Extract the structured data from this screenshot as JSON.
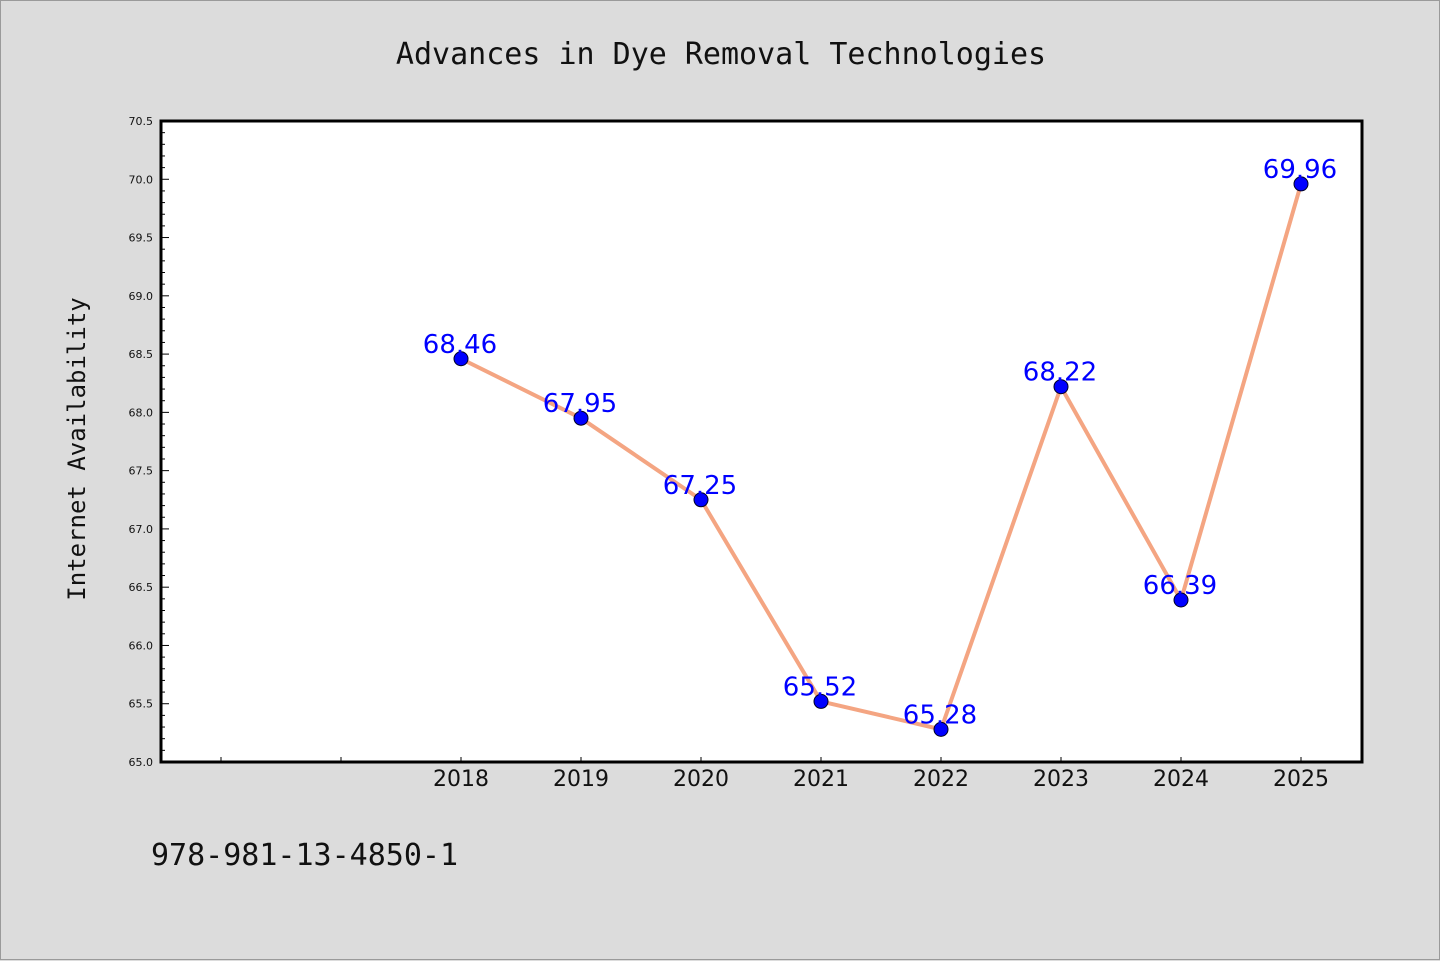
{
  "chart_data": {
    "type": "line",
    "title": "Advances in Dye Removal Technologies",
    "xlabel": "",
    "ylabel": "Internet Availability",
    "categories": [
      "2018",
      "2019",
      "2020",
      "2021",
      "2022",
      "2023",
      "2024",
      "2025"
    ],
    "series": [
      {
        "values": [
          68.46,
          67.95,
          67.25,
          65.52,
          65.28,
          68.22,
          66.39,
          69.96
        ],
        "labels": [
          "68.46",
          "67.95",
          "67.25",
          "65.52",
          "65.28",
          "68.22",
          "66.39",
          "69.96"
        ],
        "line_color": "#f4a582",
        "marker_color": "#0000ff"
      }
    ],
    "ylim": [
      65.0,
      70.5
    ],
    "yticks": [
      "65.0",
      "65.5",
      "66.0",
      "66.5",
      "67.0",
      "67.5",
      "68.0",
      "68.5",
      "69.0",
      "69.5",
      "70.0",
      "70.5"
    ],
    "grid": false,
    "legend": "none"
  },
  "footer": {
    "isbn": "978-981-13-4850-1"
  },
  "colors": {
    "background": "#dcdcdc",
    "plot_bg": "#ffffff",
    "label": "#0000ff"
  }
}
